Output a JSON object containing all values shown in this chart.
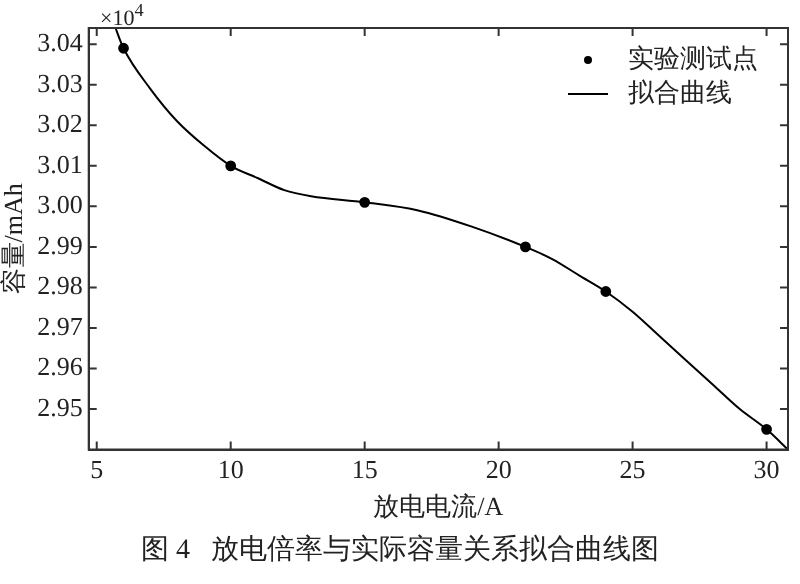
{
  "chart_data": {
    "type": "line",
    "title": "图 4   放电倍率与实际容量关系拟合曲线图",
    "xlabel": "放电电流/A",
    "ylabel": "容量/mAh",
    "annotations": [
      "×10$^{4}$"
    ],
    "xlim": [
      4.7,
      30.8
    ],
    "xticks": [
      5,
      10,
      15,
      20,
      25,
      30
    ],
    "ylim": [
      2.94,
      3.044
    ],
    "yticks": [
      2.95,
      2.96,
      2.97,
      2.98,
      2.99,
      {
        "value": 3.0,
        "label": "3.00"
      },
      3.01,
      3.02,
      3.03,
      3.04
    ],
    "grid": false,
    "legend": "top right",
    "series": [
      {
        "name": "实验测试点",
        "type": "scatter",
        "marker": "circle",
        "color": "#000000",
        "x": [
          6,
          10,
          15,
          21,
          24,
          30
        ],
        "values": [
          3.039,
          3.01,
          3.001,
          2.99,
          2.979,
          2.945
        ]
      },
      {
        "name": "拟合曲线",
        "marker": "none",
        "color": "#000000",
        "x": [
          5.7,
          6,
          7,
          8,
          9,
          10,
          11,
          12,
          13,
          15,
          17,
          19,
          21,
          22,
          23,
          24,
          25,
          26,
          27,
          28,
          29,
          30,
          30.8
        ],
        "values": [
          3.044,
          3.039,
          3.029,
          3.021,
          3.015,
          3.01,
          3.007,
          3.004,
          3.0025,
          3.001,
          2.999,
          2.995,
          2.99,
          2.987,
          2.983,
          2.979,
          2.974,
          2.968,
          2.962,
          2.956,
          2.95,
          2.945,
          2.94
        ]
      }
    ]
  }
}
